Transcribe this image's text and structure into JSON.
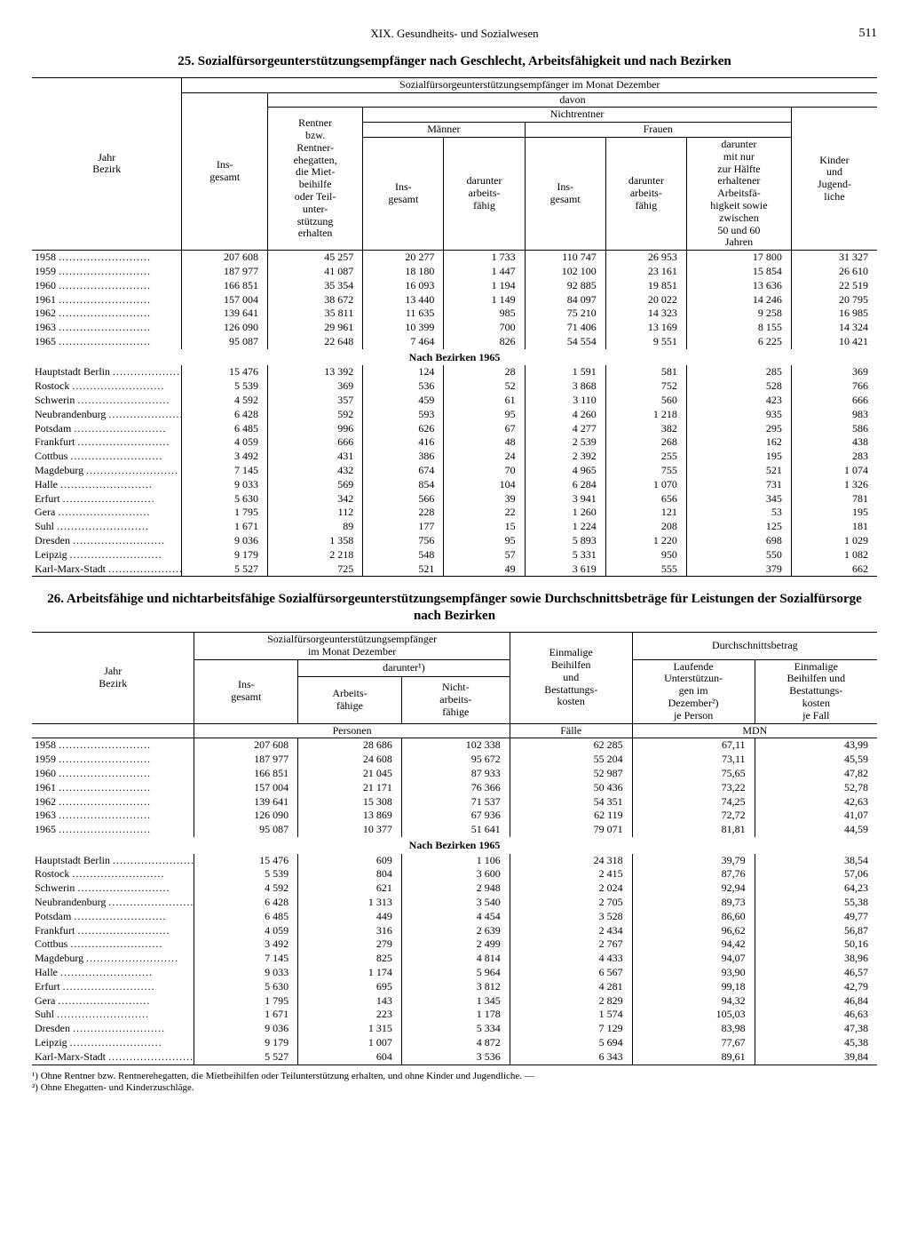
{
  "page": {
    "running_head": "XIX. Gesundheits- und Sozialwesen",
    "page_number": "511"
  },
  "table25": {
    "title": "25. Sozialfürsorgeunterstützungsempfänger nach Geschlecht, Arbeitsfähigkeit und nach Bezirken",
    "header": {
      "span_all": "Sozialfürsorgeunterstützungsempfänger im Monat Dezember",
      "davon": "davon",
      "nichtrentner": "Nichtrentner",
      "maenner": "Männer",
      "frauen": "Frauen",
      "jahr_bezirk": "Jahr\nBezirk",
      "insgesamt": "Ins-\ngesamt",
      "rentner": "Rentner\nbzw.\nRentner-\nehegatten,\ndie Miet-\nbeihilfe\noder Teil-\nunter-\nstützung\nerhalten",
      "m_ins": "Ins-\ngesamt",
      "m_arbf": "darunter\narbeits-\nfähig",
      "f_ins": "Ins-\ngesamt",
      "f_arbf": "darunter\narbeits-\nfähig",
      "f_half": "darunter\nmit nur\nzur Hälfte\nerhaltener\nArbeitsfä-\nhigkeit sowie\nzwischen\n50 und 60\nJahren",
      "kinder": "Kinder\nund\nJugend-\nliche"
    },
    "years": [
      {
        "label": "1958",
        "v": [
          "207 608",
          "45 257",
          "20 277",
          "1 733",
          "110 747",
          "26 953",
          "17 800",
          "31 327"
        ]
      },
      {
        "label": "1959",
        "v": [
          "187 977",
          "41 087",
          "18 180",
          "1 447",
          "102 100",
          "23 161",
          "15 854",
          "26 610"
        ]
      },
      {
        "label": "1960",
        "v": [
          "166 851",
          "35 354",
          "16 093",
          "1 194",
          "92 885",
          "19 851",
          "13 636",
          "22 519"
        ]
      },
      {
        "label": "1961",
        "v": [
          "157 004",
          "38 672",
          "13 440",
          "1 149",
          "84 097",
          "20 022",
          "14 246",
          "20 795"
        ]
      },
      {
        "label": "1962",
        "v": [
          "139 641",
          "35 811",
          "11 635",
          "985",
          "75 210",
          "14 323",
          "9 258",
          "16 985"
        ]
      },
      {
        "label": "1963",
        "v": [
          "126 090",
          "29 961",
          "10 399",
          "700",
          "71 406",
          "13 169",
          "8 155",
          "14 324"
        ]
      },
      {
        "label": "1965",
        "v": [
          "95 087",
          "22 648",
          "7 464",
          "826",
          "54 554",
          "9 551",
          "6 225",
          "10 421"
        ]
      }
    ],
    "subhead": "Nach Bezirken 1965",
    "bezirke": [
      {
        "label": "Hauptstadt Berlin",
        "v": [
          "15 476",
          "13 392",
          "124",
          "28",
          "1 591",
          "581",
          "285",
          "369"
        ]
      },
      {
        "label": "Rostock",
        "v": [
          "5 539",
          "369",
          "536",
          "52",
          "3 868",
          "752",
          "528",
          "766"
        ]
      },
      {
        "label": "Schwerin",
        "v": [
          "4 592",
          "357",
          "459",
          "61",
          "3 110",
          "560",
          "423",
          "666"
        ]
      },
      {
        "label": "Neubrandenburg",
        "v": [
          "6 428",
          "592",
          "593",
          "95",
          "4 260",
          "1 218",
          "935",
          "983"
        ]
      },
      {
        "label": "Potsdam",
        "v": [
          "6 485",
          "996",
          "626",
          "67",
          "4 277",
          "382",
          "295",
          "586"
        ]
      },
      {
        "label": "Frankfurt",
        "v": [
          "4 059",
          "666",
          "416",
          "48",
          "2 539",
          "268",
          "162",
          "438"
        ]
      },
      {
        "label": "Cottbus",
        "v": [
          "3 492",
          "431",
          "386",
          "24",
          "2 392",
          "255",
          "195",
          "283"
        ]
      },
      {
        "label": "Magdeburg",
        "v": [
          "7 145",
          "432",
          "674",
          "70",
          "4 965",
          "755",
          "521",
          "1 074"
        ]
      },
      {
        "label": "Halle",
        "v": [
          "9 033",
          "569",
          "854",
          "104",
          "6 284",
          "1 070",
          "731",
          "1 326"
        ]
      },
      {
        "label": "Erfurt",
        "v": [
          "5 630",
          "342",
          "566",
          "39",
          "3 941",
          "656",
          "345",
          "781"
        ]
      },
      {
        "label": "Gera",
        "v": [
          "1 795",
          "112",
          "228",
          "22",
          "1 260",
          "121",
          "53",
          "195"
        ]
      },
      {
        "label": "Suhl",
        "v": [
          "1 671",
          "89",
          "177",
          "15",
          "1 224",
          "208",
          "125",
          "181"
        ]
      },
      {
        "label": "Dresden",
        "v": [
          "9 036",
          "1 358",
          "756",
          "95",
          "5 893",
          "1 220",
          "698",
          "1 029"
        ]
      },
      {
        "label": "Leipzig",
        "v": [
          "9 179",
          "2 218",
          "548",
          "57",
          "5 331",
          "950",
          "550",
          "1 082"
        ]
      },
      {
        "label": "Karl-Marx-Stadt",
        "v": [
          "5 527",
          "725",
          "521",
          "49",
          "3 619",
          "555",
          "379",
          "662"
        ]
      }
    ]
  },
  "table26": {
    "title": "26. Arbeitsfähige und nichtarbeitsfähige Sozialfürsorgeunterstützungsempfänger sowie Durchschnittsbeträge für Leistungen der Sozialfürsorge nach Bezirken",
    "header": {
      "span_left": "Sozialfürsorgeunterstützungsempfänger\nim Monat Dezember",
      "darunter": "darunter¹)",
      "einmalige": "Einmalige\nBeihilfen\nund\nBestattungs-\nkosten",
      "durchschnitt": "Durchschnittsbetrag",
      "laufend": "Laufende\nUnterstützun-\ngen im\nDezember²)\nje Person",
      "einmal2": "Einmalige\nBeihilfen und\nBestattungs-\nkosten\nje Fall",
      "jahr_bezirk": "Jahr\nBezirk",
      "ins": "Ins-\ngesamt",
      "arbf": "Arbeits-\nfähige",
      "narbf": "Nicht-\narbeits-\nfähige",
      "personen": "Personen",
      "faelle": "Fälle",
      "mdn": "MDN"
    },
    "years": [
      {
        "label": "1958",
        "v": [
          "207 608",
          "28 686",
          "102 338",
          "62 285",
          "67,11",
          "43,99"
        ]
      },
      {
        "label": "1959",
        "v": [
          "187 977",
          "24 608",
          "95 672",
          "55 204",
          "73,11",
          "45,59"
        ]
      },
      {
        "label": "1960",
        "v": [
          "166 851",
          "21 045",
          "87 933",
          "52 987",
          "75,65",
          "47,82"
        ]
      },
      {
        "label": "1961",
        "v": [
          "157 004",
          "21 171",
          "76 366",
          "50 436",
          "73,22",
          "52,78"
        ]
      },
      {
        "label": "1962",
        "v": [
          "139 641",
          "15 308",
          "71 537",
          "54 351",
          "74,25",
          "42,63"
        ]
      },
      {
        "label": "1963",
        "v": [
          "126 090",
          "13 869",
          "67 936",
          "62 119",
          "72,72",
          "41,07"
        ]
      },
      {
        "label": "1965",
        "v": [
          "95 087",
          "10 377",
          "51 641",
          "79 071",
          "81,81",
          "44,59"
        ]
      }
    ],
    "subhead": "Nach Bezirken 1965",
    "bezirke": [
      {
        "label": "Hauptstadt Berlin",
        "v": [
          "15 476",
          "609",
          "1 106",
          "24 318",
          "39,79",
          "38,54"
        ]
      },
      {
        "label": "Rostock",
        "v": [
          "5 539",
          "804",
          "3 600",
          "2 415",
          "87,76",
          "57,06"
        ]
      },
      {
        "label": "Schwerin",
        "v": [
          "4 592",
          "621",
          "2 948",
          "2 024",
          "92,94",
          "64,23"
        ]
      },
      {
        "label": "Neubrandenburg",
        "v": [
          "6 428",
          "1 313",
          "3 540",
          "2 705",
          "89,73",
          "55,38"
        ]
      },
      {
        "label": "Potsdam",
        "v": [
          "6 485",
          "449",
          "4 454",
          "3 528",
          "86,60",
          "49,77"
        ]
      },
      {
        "label": "Frankfurt",
        "v": [
          "4 059",
          "316",
          "2 639",
          "2 434",
          "96,62",
          "56,87"
        ]
      },
      {
        "label": "Cottbus",
        "v": [
          "3 492",
          "279",
          "2 499",
          "2 767",
          "94,42",
          "50,16"
        ]
      },
      {
        "label": "Magdeburg",
        "v": [
          "7 145",
          "825",
          "4 814",
          "4 433",
          "94,07",
          "38,96"
        ]
      },
      {
        "label": "Halle",
        "v": [
          "9 033",
          "1 174",
          "5 964",
          "6 567",
          "93,90",
          "46,57"
        ]
      },
      {
        "label": "Erfurt",
        "v": [
          "5 630",
          "695",
          "3 812",
          "4 281",
          "99,18",
          "42,79"
        ]
      },
      {
        "label": "Gera",
        "v": [
          "1 795",
          "143",
          "1 345",
          "2 829",
          "94,32",
          "46,84"
        ]
      },
      {
        "label": "Suhl",
        "v": [
          "1 671",
          "223",
          "1 178",
          "1 574",
          "105,03",
          "46,63"
        ]
      },
      {
        "label": "Dresden",
        "v": [
          "9 036",
          "1 315",
          "5 334",
          "7 129",
          "83,98",
          "47,38"
        ]
      },
      {
        "label": "Leipzig",
        "v": [
          "9 179",
          "1 007",
          "4 872",
          "5 694",
          "77,67",
          "45,38"
        ]
      },
      {
        "label": "Karl-Marx-Stadt",
        "v": [
          "5 527",
          "604",
          "3 536",
          "6 343",
          "89,61",
          "39,84"
        ]
      }
    ],
    "footnotes": [
      "¹) Ohne Rentner bzw. Rentnerehegatten, die Mietbeihilfen oder Teilunterstützung erhalten, und ohne Kinder und Jugendliche. —",
      "²) Ohne Ehegatten- und Kinderzuschläge."
    ]
  }
}
